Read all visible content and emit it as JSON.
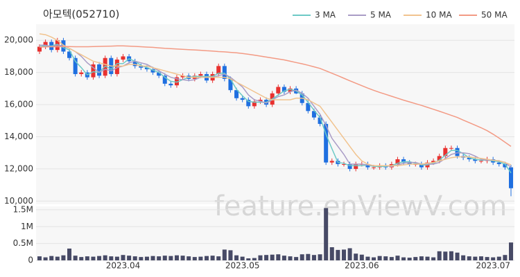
{
  "chart_data": {
    "type": "candlestick",
    "title": "아모텍(052710)",
    "watermark": "feature.enViewV.com",
    "categories": [
      null,
      null,
      null,
      null,
      null,
      null,
      null,
      null,
      null,
      null,
      null,
      null,
      null,
      null,
      "2023.04",
      null,
      null,
      null,
      null,
      null,
      null,
      null,
      null,
      null,
      null,
      null,
      null,
      null,
      null,
      null,
      null,
      null,
      null,
      null,
      "2023.05",
      null,
      null,
      null,
      null,
      null,
      null,
      null,
      null,
      null,
      null,
      null,
      null,
      null,
      null,
      null,
      null,
      null,
      null,
      null,
      "2023.06",
      null,
      null,
      null,
      null,
      null,
      null,
      null,
      null,
      null,
      null,
      null,
      null,
      null,
      null,
      null,
      null,
      null,
      null,
      null,
      null,
      null,
      "2023.07",
      null,
      null,
      null
    ],
    "open": [
      19300,
      19600,
      19900,
      19400,
      20000,
      19300,
      18900,
      17900,
      18000,
      17700,
      18500,
      17800,
      18900,
      17900,
      18800,
      19000,
      18700,
      18400,
      18300,
      18200,
      18000,
      17800,
      17300,
      17200,
      17700,
      17800,
      17600,
      17800,
      17900,
      17500,
      17900,
      18400,
      17600,
      16900,
      16400,
      16300,
      15900,
      16200,
      16300,
      16000,
      16700,
      17100,
      16800,
      17000,
      16700,
      16100,
      15600,
      15200,
      14800,
      12400,
      12500,
      12300,
      12300,
      12000,
      12300,
      12300,
      12100,
      12100,
      12200,
      12100,
      12300,
      12600,
      12400,
      12300,
      12300,
      12100,
      12400,
      12500,
      12800,
      13300,
      13300,
      12800,
      12700,
      12600,
      12500,
      12500,
      12600,
      12400,
      12300,
      12100
    ],
    "high": [
      19750,
      20050,
      20050,
      20150,
      20150,
      19450,
      19050,
      18150,
      18150,
      18650,
      18650,
      19050,
      19050,
      18950,
      19150,
      19150,
      18850,
      18550,
      18450,
      18350,
      18150,
      17950,
      17450,
      17850,
      17950,
      17950,
      17950,
      18050,
      18050,
      18050,
      18550,
      18550,
      17750,
      17050,
      16550,
      16450,
      16350,
      16450,
      16450,
      16850,
      17250,
      17250,
      17150,
      17150,
      16850,
      16250,
      15750,
      15350,
      14950,
      12650,
      12650,
      12450,
      12450,
      12450,
      12450,
      12450,
      12250,
      12350,
      12350,
      12450,
      12750,
      12750,
      12550,
      12450,
      12450,
      12550,
      12650,
      12950,
      13450,
      13450,
      13450,
      12950,
      12850,
      12750,
      12650,
      12750,
      12750,
      12550,
      12450,
      12250
    ],
    "low": [
      19150,
      19450,
      19250,
      19250,
      19150,
      18750,
      17750,
      17750,
      17550,
      17550,
      17650,
      17650,
      17750,
      17750,
      18650,
      18550,
      18250,
      18150,
      18050,
      17850,
      17650,
      17150,
      17050,
      17050,
      17550,
      17450,
      17450,
      17650,
      17350,
      17350,
      17750,
      17450,
      16750,
      16250,
      16150,
      15750,
      15750,
      16050,
      15850,
      15850,
      16550,
      16650,
      16650,
      16650,
      15950,
      15450,
      15050,
      14650,
      12250,
      12250,
      12150,
      12150,
      11850,
      11850,
      12150,
      11950,
      11950,
      11950,
      11950,
      11950,
      12150,
      12250,
      12150,
      12150,
      11950,
      11950,
      12250,
      12350,
      12650,
      13150,
      12650,
      12550,
      12450,
      12350,
      12350,
      12350,
      12250,
      12150,
      11950,
      10300
    ],
    "close": [
      19600,
      19900,
      19400,
      20000,
      19300,
      18900,
      17900,
      18000,
      17700,
      18500,
      17800,
      18900,
      17900,
      18800,
      19000,
      18700,
      18400,
      18300,
      18200,
      18000,
      17800,
      17300,
      17200,
      17700,
      17800,
      17600,
      17800,
      17900,
      17500,
      17900,
      18400,
      17600,
      16900,
      16400,
      16300,
      15900,
      16200,
      16300,
      16000,
      16700,
      17100,
      16800,
      17000,
      16700,
      16100,
      15600,
      15200,
      14800,
      12400,
      12500,
      12300,
      12300,
      12000,
      12300,
      12300,
      12100,
      12100,
      12200,
      12100,
      12300,
      12600,
      12400,
      12300,
      12300,
      12100,
      12400,
      12500,
      12800,
      13300,
      13300,
      12800,
      12700,
      12600,
      12500,
      12500,
      12600,
      12400,
      12300,
      12100,
      10800
    ],
    "volume": [
      120000,
      90000,
      130000,
      110000,
      150000,
      350000,
      140000,
      100000,
      120000,
      110000,
      130000,
      150000,
      120000,
      110000,
      160000,
      140000,
      120000,
      100000,
      110000,
      130000,
      120000,
      140000,
      130000,
      150000,
      140000,
      120000,
      100000,
      110000,
      130000,
      140000,
      120000,
      320000,
      300000,
      150000,
      110000,
      60000,
      70000,
      150000,
      160000,
      170000,
      180000,
      140000,
      120000,
      100000,
      180000,
      190000,
      160000,
      180000,
      1550000,
      390000,
      310000,
      320000,
      360000,
      200000,
      170000,
      110000,
      90000,
      130000,
      120000,
      100000,
      140000,
      90000,
      80000,
      100000,
      120000,
      110000,
      90000,
      270000,
      260000,
      270000,
      230000,
      150000,
      120000,
      110000,
      120000,
      100000,
      90000,
      110000,
      160000,
      530000
    ],
    "up_color": "#e8312f",
    "down_color": "#1f6fe0",
    "volume_color": "#474a66",
    "series": [
      {
        "name": "3 MA",
        "color": "#6cc9c6",
        "values": [
          19600,
          19650,
          19650,
          19750,
          19550,
          19400,
          18700,
          18300,
          17850,
          18050,
          18000,
          18400,
          18200,
          18550,
          18550,
          18850,
          18700,
          18450,
          18300,
          18150,
          18000,
          17700,
          17450,
          17400,
          17550,
          17700,
          17750,
          17750,
          17750,
          17750,
          17950,
          17950,
          17600,
          16950,
          16550,
          16200,
          16150,
          16150,
          16150,
          16350,
          16600,
          16850,
          16950,
          16850,
          16600,
          16150,
          15650,
          15200,
          14150,
          13250,
          12400,
          12350,
          12200,
          12200,
          12200,
          12250,
          12150,
          12150,
          12150,
          12200,
          12350,
          12450,
          12450,
          12350,
          12250,
          12250,
          12350,
          12550,
          12850,
          13150,
          13150,
          12950,
          12700,
          12600,
          12550,
          12550,
          12500,
          12450,
          12300,
          11750
        ]
      },
      {
        "name": "5 MA",
        "color": "#a99cc6",
        "values": [
          19700,
          19700,
          19600,
          19700,
          19650,
          19500,
          19300,
          19000,
          18600,
          18300,
          18000,
          18200,
          18100,
          18300,
          18400,
          18600,
          18700,
          18600,
          18500,
          18300,
          18100,
          17900,
          17700,
          17600,
          17550,
          17500,
          17550,
          17700,
          17700,
          17700,
          17800,
          17900,
          17700,
          17400,
          17100,
          16600,
          16300,
          16200,
          16100,
          16300,
          16500,
          16600,
          16800,
          16900,
          16700,
          16400,
          15900,
          15400,
          14700,
          13900,
          13400,
          12900,
          12300,
          12300,
          12300,
          12250,
          12200,
          12200,
          12200,
          12150,
          12250,
          12350,
          12400,
          12400,
          12300,
          12300,
          12300,
          12400,
          12650,
          12900,
          13000,
          13000,
          12950,
          12800,
          12600,
          12550,
          12550,
          12500,
          12400,
          12100
        ]
      },
      {
        "name": "10 MA",
        "color": "#f1c38e",
        "values": [
          20400,
          20350,
          20200,
          20000,
          19700,
          19500,
          19300,
          19100,
          18900,
          18700,
          18600,
          18500,
          18400,
          18400,
          18400,
          18500,
          18500,
          18400,
          18400,
          18300,
          18200,
          18100,
          18000,
          17900,
          17800,
          17700,
          17700,
          17700,
          17700,
          17700,
          17700,
          17700,
          17600,
          17400,
          17200,
          17000,
          16800,
          16600,
          16400,
          16300,
          16300,
          16300,
          16300,
          16400,
          16400,
          16300,
          16100,
          15900,
          15400,
          14900,
          14400,
          13900,
          13400,
          12900,
          12500,
          12300,
          12200,
          12200,
          12200,
          12200,
          12200,
          12250,
          12300,
          12300,
          12300,
          12350,
          12400,
          12500,
          12600,
          12700,
          12750,
          12750,
          12750,
          12700,
          12650,
          12600,
          12550,
          12500,
          12400,
          12250
        ]
      },
      {
        "name": "50 MA",
        "color": "#f39a84",
        "values": [
          19580,
          19590,
          19600,
          19600,
          19610,
          19610,
          19600,
          19600,
          19600,
          19610,
          19620,
          19630,
          19640,
          19650,
          19650,
          19640,
          19620,
          19600,
          19580,
          19560,
          19530,
          19500,
          19480,
          19460,
          19440,
          19420,
          19400,
          19380,
          19350,
          19330,
          19300,
          19280,
          19250,
          19220,
          19180,
          19130,
          19080,
          19020,
          18960,
          18900,
          18840,
          18780,
          18700,
          18620,
          18540,
          18450,
          18350,
          18250,
          18100,
          17950,
          17800,
          17640,
          17480,
          17330,
          17180,
          17030,
          16890,
          16760,
          16640,
          16520,
          16400,
          16280,
          16170,
          16060,
          15950,
          15830,
          15710,
          15590,
          15460,
          15330,
          15200,
          15040,
          14880,
          14720,
          14560,
          14380,
          14160,
          13920,
          13660,
          13400
        ]
      }
    ],
    "ylim": [
      9800,
      21000
    ],
    "yticks": [
      {
        "value": 10000,
        "label": "10,000"
      },
      {
        "value": 12000,
        "label": "12,000"
      },
      {
        "value": 14000,
        "label": "14,000"
      },
      {
        "value": 16000,
        "label": "16,000"
      },
      {
        "value": 18000,
        "label": "18,000"
      },
      {
        "value": 20000,
        "label": "20,000"
      }
    ],
    "volume_ylim": [
      0,
      1600000
    ],
    "volume_yticks": [
      0,
      {
        "value": 500000,
        "label": "0.5M"
      },
      {
        "value": 1000000,
        "label": "1M"
      },
      {
        "value": 1500000,
        "label": "1.5M"
      }
    ],
    "grid": true,
    "legend": "top-right"
  }
}
